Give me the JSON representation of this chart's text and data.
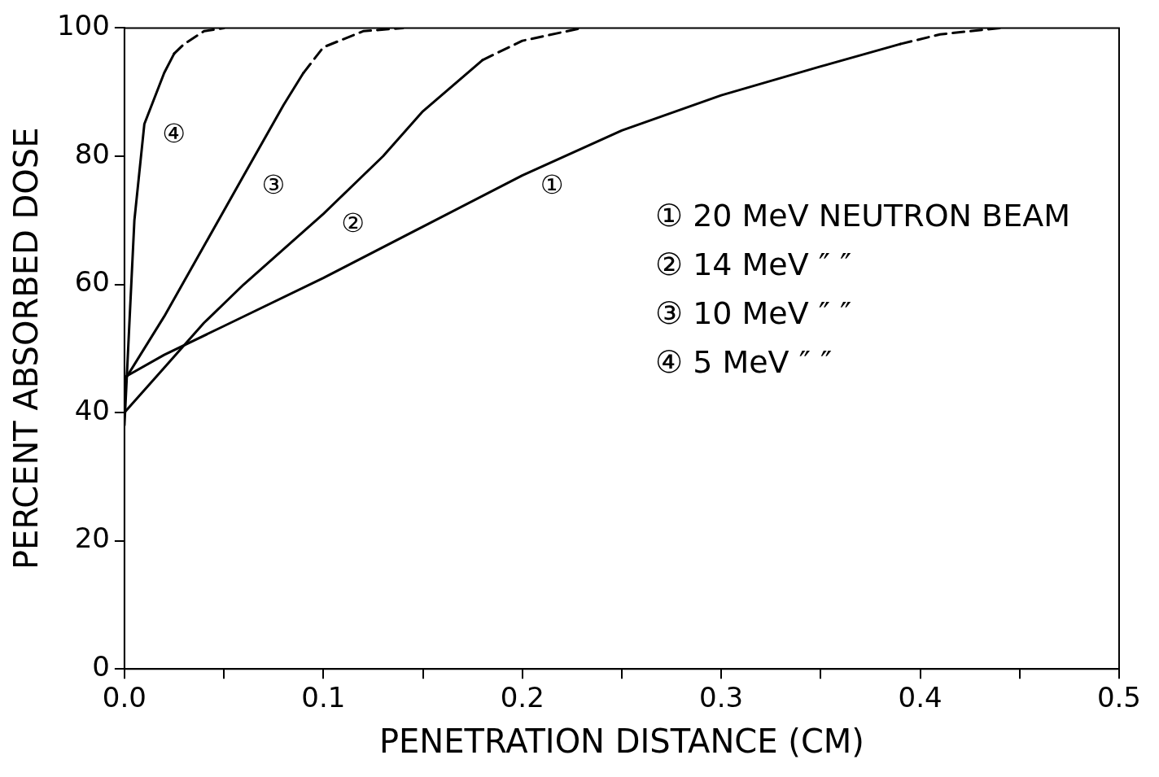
{
  "chart_data": {
    "type": "line",
    "xlabel": "PENETRATION DISTANCE (CM)",
    "ylabel": "PERCENT ABSORBED DOSE",
    "xlim": [
      0,
      0.5
    ],
    "ylim": [
      0,
      100
    ],
    "xticks": [
      {
        "value": 0,
        "label": "0.0"
      },
      {
        "value": 0.05,
        "label": null
      },
      {
        "value": 0.1,
        "label": "0.1"
      },
      {
        "value": 0.15,
        "label": null
      },
      {
        "value": 0.2,
        "label": "0.2"
      },
      {
        "value": 0.25,
        "label": null
      },
      {
        "value": 0.3,
        "label": "0.3"
      },
      {
        "value": 0.35,
        "label": null
      },
      {
        "value": 0.4,
        "label": "0.4"
      },
      {
        "value": 0.45,
        "label": null
      },
      {
        "value": 0.5,
        "label": "0.5"
      }
    ],
    "yticks": [
      0,
      20,
      40,
      60,
      80,
      100
    ],
    "grid": false,
    "marker": "none",
    "series": [
      {
        "name": "①",
        "color": "#000000",
        "line_style": "solid",
        "x": [
          0,
          0.02,
          0.05,
          0.1,
          0.15,
          0.2,
          0.25,
          0.3,
          0.35,
          0.39
        ],
        "values": [
          45.5,
          49,
          53.5,
          61,
          69,
          77,
          84,
          89.5,
          94,
          97.5
        ]
      },
      {
        "color": "#000000",
        "line_style": "dashed",
        "x": [
          0.39,
          0.41,
          0.44
        ],
        "values": [
          97.5,
          99,
          100
        ]
      },
      {
        "name": "②",
        "color": "#000000",
        "line_style": "solid",
        "x": [
          0,
          0.02,
          0.04,
          0.06,
          0.1,
          0.13,
          0.15,
          0.18
        ],
        "values": [
          40,
          47,
          54,
          60,
          71,
          80,
          87,
          95
        ]
      },
      {
        "color": "#000000",
        "line_style": "dashed",
        "x": [
          0.18,
          0.2,
          0.23
        ],
        "values": [
          95,
          98,
          100
        ]
      },
      {
        "name": "③",
        "color": "#000000",
        "line_style": "solid",
        "x": [
          0,
          0.02,
          0.04,
          0.06,
          0.08,
          0.09
        ],
        "values": [
          45,
          55,
          66,
          77,
          88,
          93
        ]
      },
      {
        "color": "#000000",
        "line_style": "dashed",
        "x": [
          0.09,
          0.1,
          0.12,
          0.14
        ],
        "values": [
          93,
          97,
          99.5,
          100
        ]
      },
      {
        "name": "④",
        "color": "#000000",
        "line_style": "solid",
        "x": [
          0,
          0.005,
          0.01,
          0.02,
          0.025
        ],
        "values": [
          38,
          70,
          85,
          93,
          96
        ]
      },
      {
        "color": "#000000",
        "line_style": "dashed",
        "x": [
          0.025,
          0.03,
          0.04,
          0.05
        ],
        "values": [
          96,
          97.5,
          99.5,
          100
        ]
      }
    ],
    "annotations": [
      "① 20 MeV NEUTRON BEAM",
      "② 14 MeV ″ ″",
      "③ 10 MeV ″ ″",
      "④ 5 MeV ″ ″"
    ]
  }
}
